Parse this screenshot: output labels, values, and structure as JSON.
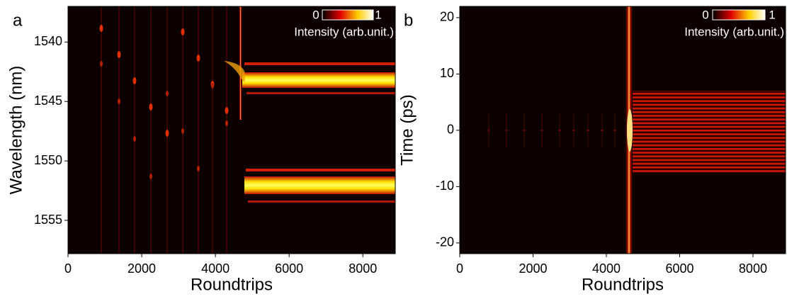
{
  "chart_data": [
    {
      "type": "heatmap",
      "panel_label": "a",
      "xlabel": "Roundtrips",
      "ylabel": "Wavelength (nm)",
      "xlim": [
        0,
        8880
      ],
      "xticks": [
        0,
        2000,
        4000,
        6000,
        8000
      ],
      "ylim": [
        1557.8,
        1537
      ],
      "yticks": [
        1540,
        1545,
        1550,
        1555
      ],
      "colorbar": {
        "min": 0,
        "max": 1,
        "label": "Intensity (arb.unit.)"
      }
    },
    {
      "type": "heatmap",
      "panel_label": "b",
      "xlabel": "Roundtrips",
      "ylabel": "Time (ps)",
      "xlim": [
        0,
        8890
      ],
      "xticks": [
        0,
        2000,
        4000,
        6000,
        8000
      ],
      "ylim": [
        -21.9,
        22
      ],
      "yticks": [
        -20,
        -10,
        0,
        10,
        20
      ],
      "colorbar": {
        "min": 0,
        "max": 1,
        "label": "Intensity (arb.unit.)"
      }
    }
  ]
}
